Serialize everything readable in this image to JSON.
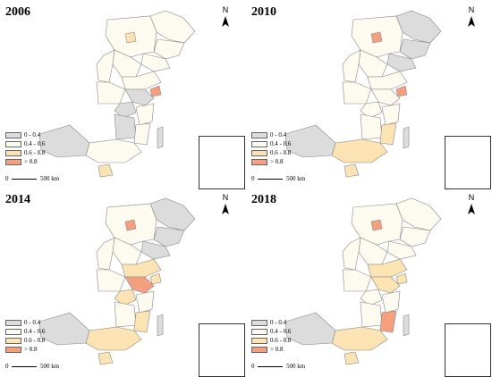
{
  "colors": {
    "c0": "#dcdcdc",
    "c1": "#fdfbf0",
    "c2": "#fbe3b4",
    "c3": "#f4a07e",
    "stroke": "#888888"
  },
  "legend": {
    "items": [
      {
        "label": "0 - 0.4",
        "color": "#dcdcdc"
      },
      {
        "label": "0.4 - 0.6",
        "color": "#fdfbf0"
      },
      {
        "label": "0.6 - 0.8",
        "color": "#fbe3b4"
      },
      {
        "label": "> 0.8",
        "color": "#f4a07e"
      }
    ]
  },
  "scale_bar": {
    "left": "0",
    "right": "500 km"
  },
  "north_label": "N",
  "panels": [
    {
      "year": "2006",
      "regions": {
        "heilongjiang": "c1",
        "jilin": "c1",
        "liaoning": "c1",
        "neimenggu": "c1",
        "beijing": "c2",
        "hebei": "c1",
        "shanxi": "c1",
        "shandong": "c1",
        "henan": "c1",
        "jiangsu": "c0",
        "anhui": "c0",
        "shanghai": "c3",
        "zhejiang": "c1",
        "jiangxi": "c0",
        "fujian": "c1",
        "guangdong": "c1",
        "guangxi": "c0",
        "hainan": "c2",
        "taiwan": "c0"
      }
    },
    {
      "year": "2010",
      "regions": {
        "heilongjiang": "c0",
        "jilin": "c0",
        "liaoning": "c0",
        "neimenggu": "c1",
        "beijing": "c3",
        "hebei": "c1",
        "shanxi": "c1",
        "shandong": "c1",
        "henan": "c1",
        "jiangsu": "c1",
        "anhui": "c1",
        "shanghai": "c3",
        "zhejiang": "c1",
        "jiangxi": "c1",
        "fujian": "c2",
        "guangdong": "c2",
        "guangxi": "c0",
        "hainan": "c2",
        "taiwan": "c0"
      }
    },
    {
      "year": "2014",
      "regions": {
        "heilongjiang": "c0",
        "jilin": "c0",
        "liaoning": "c0",
        "neimenggu": "c1",
        "beijing": "c3",
        "hebei": "c1",
        "shanxi": "c1",
        "shandong": "c2",
        "henan": "c1",
        "jiangsu": "c3",
        "anhui": "c2",
        "shanghai": "c2",
        "zhejiang": "c1",
        "jiangxi": "c1",
        "fujian": "c2",
        "guangdong": "c2",
        "guangxi": "c0",
        "hainan": "c2",
        "taiwan": "c0"
      }
    },
    {
      "year": "2018",
      "regions": {
        "heilongjiang": "c1",
        "jilin": "c1",
        "liaoning": "c1",
        "neimenggu": "c1",
        "beijing": "c3",
        "hebei": "c1",
        "shanxi": "c1",
        "shandong": "c2",
        "henan": "c1",
        "jiangsu": "c2",
        "anhui": "c1",
        "shanghai": "c2",
        "zhejiang": "c1",
        "jiangxi": "c1",
        "fujian": "c3",
        "guangdong": "c2",
        "guangxi": "c0",
        "hainan": "c2",
        "taiwan": "c0"
      }
    }
  ]
}
